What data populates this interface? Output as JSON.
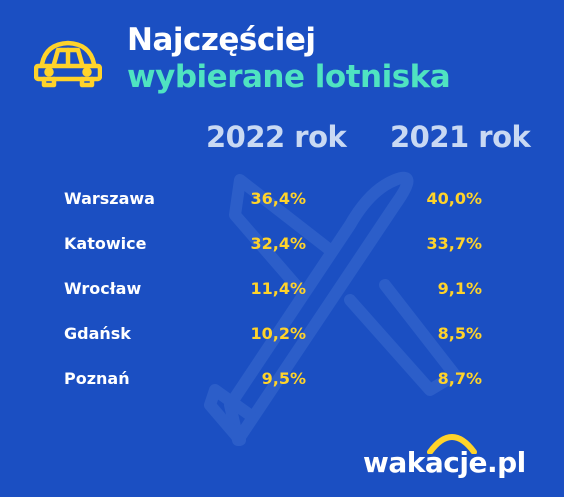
{
  "title": {
    "line1": "Najczęściej",
    "line2": "wybierane lotniska"
  },
  "chart_data": {
    "type": "table",
    "columns": [
      "2022 rok",
      "2021 rok"
    ],
    "rows": [
      {
        "label": "Warszawa",
        "values": [
          "36,4%",
          "40,0%"
        ]
      },
      {
        "label": "Katowice",
        "values": [
          "32,4%",
          "33,7%"
        ]
      },
      {
        "label": "Wrocław",
        "values": [
          "11,4%",
          "9,1%"
        ]
      },
      {
        "label": "Gdańsk",
        "values": [
          "10,2%",
          "8,5%"
        ]
      },
      {
        "label": "Poznań",
        "values": [
          "9,5%",
          "8,7%"
        ]
      }
    ]
  },
  "brand": {
    "logo_text": "wakacje.pl",
    "icons": [
      "car-icon",
      "airplane-watermark-icon",
      "sun-arc-icon"
    ]
  },
  "colors": {
    "background": "#1b4fc2",
    "title_primary": "#ffffff",
    "title_accent": "#4fe3c1",
    "column_header": "#c9d9f3",
    "values": "#ffd32a",
    "car_icon": "#ffd32a",
    "logo_arc": "#ffd32a"
  }
}
